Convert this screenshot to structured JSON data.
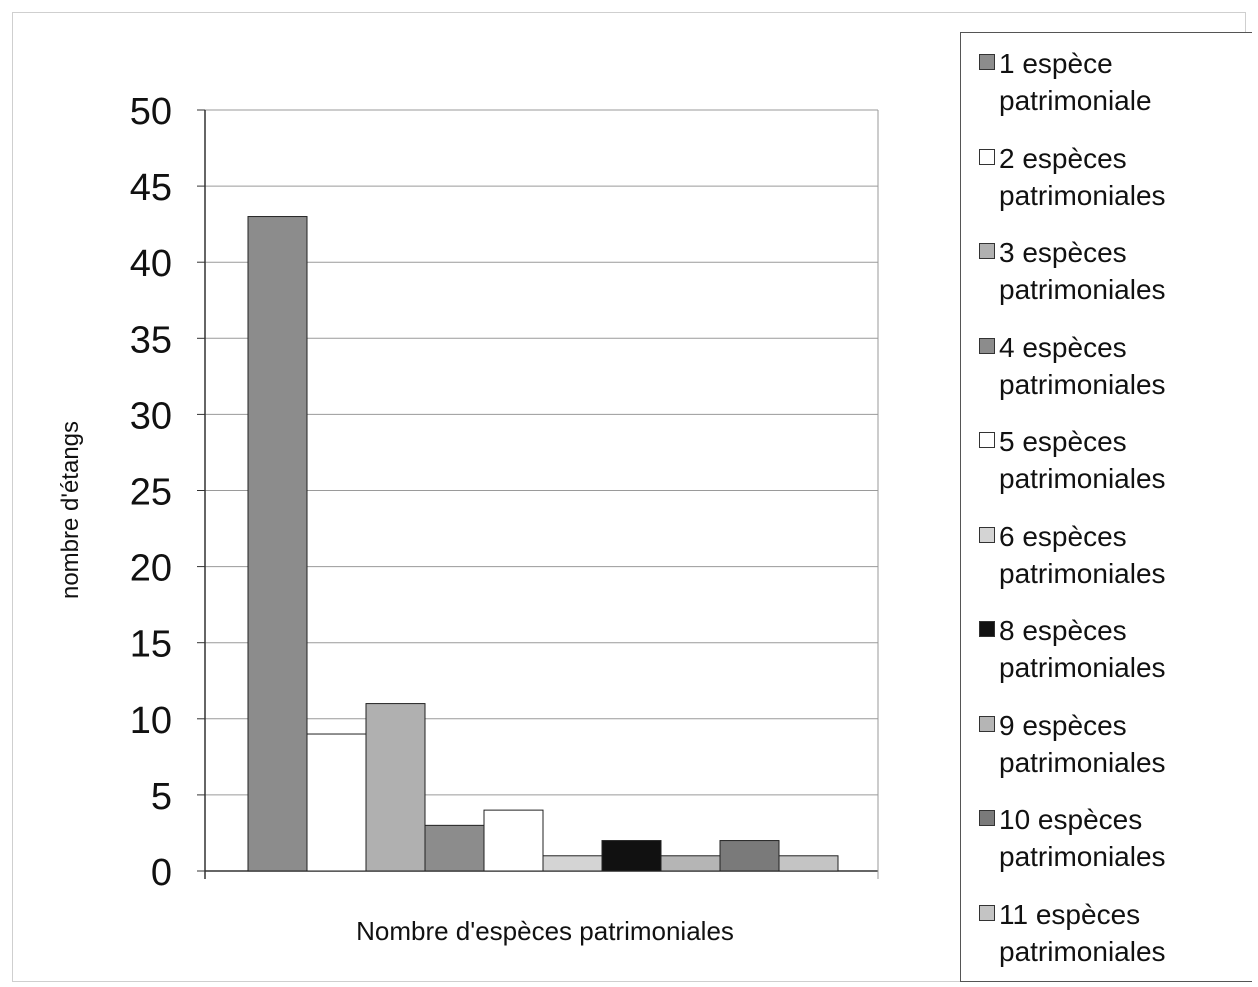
{
  "chart_data": {
    "type": "bar",
    "title": "",
    "xlabel": "Nombre d'espèces patrimoniales",
    "ylabel": "nombre d'étangs",
    "ylim": [
      0,
      50
    ],
    "yticks": [
      "0",
      "5",
      "10",
      "15",
      "20",
      "25",
      "30",
      "35",
      "40",
      "45",
      "50"
    ],
    "grid": true,
    "legend_position": "right",
    "series": [
      {
        "name": "1 espèce patrimoniale",
        "value": 43,
        "color": "#8c8c8c"
      },
      {
        "name": "2 espèces patrimoniales",
        "value": 9,
        "color": "#ffffff"
      },
      {
        "name": "3 espèces patrimoniales",
        "value": 11,
        "color": "#b0b0b0"
      },
      {
        "name": "4 espèces patrimoniales",
        "value": 3,
        "color": "#8c8c8c"
      },
      {
        "name": "5 espèces patrimoniales",
        "value": 4,
        "color": "#ffffff"
      },
      {
        "name": "6 espèces patrimoniales",
        "value": 1,
        "color": "#d4d4d4"
      },
      {
        "name": "8 espèces patrimoniales",
        "value": 2,
        "color": "#111111"
      },
      {
        "name": "9 espèces patrimoniales",
        "value": 1,
        "color": "#b5b5b5"
      },
      {
        "name": "10 espèces patrimoniales",
        "value": 2,
        "color": "#7a7a7a"
      },
      {
        "name": "11 espèces patrimoniales",
        "value": 1,
        "color": "#c4c4c4"
      }
    ]
  }
}
